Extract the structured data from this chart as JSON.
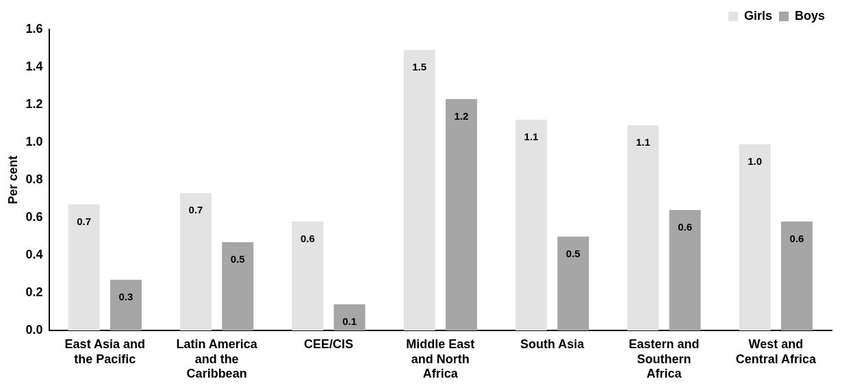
{
  "chart_data": {
    "type": "bar",
    "ylabel": "Per cent",
    "categories": [
      "East Asia and the Pacific",
      "Latin America and the Caribbean",
      "CEE/CIS",
      "Middle East and North Africa",
      "South Asia",
      "Eastern and Southern Africa",
      "West and Central Africa"
    ],
    "series": [
      {
        "name": "Girls",
        "color": "#e3e3e3",
        "values": [
          0.67,
          0.73,
          0.58,
          1.49,
          1.12,
          1.09,
          0.99
        ],
        "value_labels": [
          "0.7",
          "0.7",
          "0.6",
          "1.5",
          "1.1",
          "1.1",
          "1.0"
        ]
      },
      {
        "name": "Boys",
        "color": "#a6a6a6",
        "values": [
          0.27,
          0.47,
          0.14,
          1.23,
          0.5,
          0.64,
          0.58
        ],
        "value_labels": [
          "0.3",
          "0.5",
          "0.1",
          "1.2",
          "0.5",
          "0.6",
          "0.6"
        ]
      }
    ],
    "ylim": [
      0,
      1.6
    ],
    "yticks": [
      {
        "value": 0,
        "label": "0.0"
      },
      {
        "value": 0.2,
        "label": "0.2"
      },
      {
        "value": 0.4,
        "label": "0.4"
      },
      {
        "value": 0.6,
        "label": "0.6"
      },
      {
        "value": 0.8,
        "label": "0.8"
      },
      {
        "value": 1,
        "label": "1.0"
      },
      {
        "value": 1.2,
        "label": "1.2"
      },
      {
        "value": 1.4,
        "label": "1.4"
      },
      {
        "value": 1.6,
        "label": "1.6"
      }
    ],
    "grid": false,
    "legend": "top right"
  }
}
